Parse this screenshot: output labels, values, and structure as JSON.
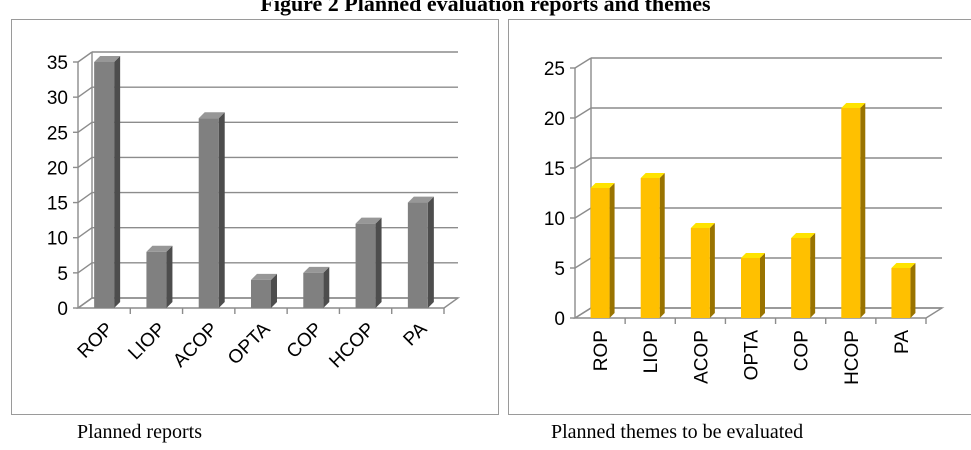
{
  "figure": {
    "title": "Figure 2 Planned evaluation reports and themes",
    "captions": [
      "Planned reports",
      "Planned themes to be evaluated"
    ]
  },
  "colors": {
    "left_bar": "#808080",
    "right_bar": "#ffc000",
    "grid": "#8c8c8c"
  },
  "chart_data": [
    {
      "type": "bar",
      "categories": [
        "ROP",
        "LIOP",
        "ACOP",
        "OPTA",
        "COP",
        "HCOP",
        "PA"
      ],
      "values": [
        35,
        8,
        27,
        4,
        5,
        12,
        15
      ],
      "ylim": [
        0,
        35
      ],
      "yticks": [
        0,
        5,
        10,
        15,
        20,
        25,
        30,
        35
      ],
      "grid": true,
      "style": "3d-column",
      "label_orientation": "diagonal",
      "color": "#808080"
    },
    {
      "type": "bar",
      "categories": [
        "ROP",
        "LIOP",
        "ACOP",
        "OPTA",
        "COP",
        "HCOP",
        "PA"
      ],
      "values": [
        13,
        14,
        9,
        6,
        8,
        21,
        5
      ],
      "ylim": [
        0,
        25
      ],
      "yticks": [
        0,
        5,
        10,
        15,
        20,
        25
      ],
      "grid": true,
      "style": "3d-column",
      "label_orientation": "vertical",
      "color": "#ffc000"
    }
  ]
}
